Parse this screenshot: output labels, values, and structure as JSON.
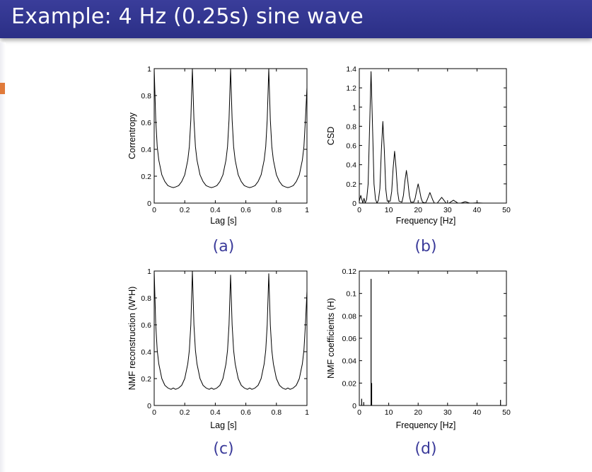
{
  "slide": {
    "title": "Example: 4 Hz (0.25s) sine wave"
  },
  "colors": {
    "title_bar": "#2e3188",
    "title_text": "#ffffff",
    "caption": "#3b3b9a",
    "marker": "#e07a3a",
    "plot_line": "#000000"
  },
  "chart_data": [
    {
      "id": "a",
      "caption": "(a)",
      "type": "line",
      "title": "",
      "xlabel": "Lag [s]",
      "ylabel": "Correntropy",
      "xlim": [
        0,
        1
      ],
      "ylim": [
        0,
        1
      ],
      "xticks": [
        0,
        0.2,
        0.4,
        0.6,
        0.8,
        1
      ],
      "xtick_labels": [
        "0",
        "0.2",
        "0.4",
        "0.6",
        "0.8",
        "1"
      ],
      "yticks": [
        0,
        0.2,
        0.4,
        0.6,
        0.8,
        1
      ],
      "ytick_labels": [
        "0",
        "0.2",
        "0.4",
        "0.6",
        "0.8",
        "1"
      ],
      "series": [
        {
          "x": [
            0,
            0.01,
            0.02,
            0.03,
            0.05,
            0.07,
            0.09,
            0.11,
            0.125,
            0.14,
            0.16,
            0.18,
            0.2,
            0.22,
            0.23,
            0.24,
            0.25,
            0.26,
            0.27,
            0.28,
            0.3,
            0.32,
            0.34,
            0.36,
            0.375,
            0.39,
            0.41,
            0.43,
            0.45,
            0.47,
            0.48,
            0.49,
            0.5,
            0.51,
            0.52,
            0.53,
            0.55,
            0.57,
            0.59,
            0.61,
            0.625,
            0.64,
            0.66,
            0.68,
            0.7,
            0.72,
            0.73,
            0.74,
            0.75,
            0.76,
            0.77,
            0.78,
            0.8,
            0.82,
            0.84,
            0.86,
            0.875,
            0.89,
            0.91,
            0.93,
            0.95,
            0.97,
            0.98,
            0.99,
            1.0
          ],
          "y": [
            1.0,
            0.62,
            0.42,
            0.32,
            0.21,
            0.16,
            0.13,
            0.12,
            0.115,
            0.12,
            0.13,
            0.16,
            0.21,
            0.32,
            0.42,
            0.62,
            1.0,
            0.62,
            0.42,
            0.32,
            0.21,
            0.16,
            0.13,
            0.12,
            0.115,
            0.12,
            0.13,
            0.16,
            0.21,
            0.32,
            0.42,
            0.62,
            1.0,
            0.62,
            0.42,
            0.32,
            0.21,
            0.16,
            0.13,
            0.12,
            0.115,
            0.12,
            0.13,
            0.16,
            0.21,
            0.32,
            0.42,
            0.62,
            1.0,
            0.62,
            0.42,
            0.32,
            0.21,
            0.16,
            0.13,
            0.12,
            0.115,
            0.12,
            0.13,
            0.16,
            0.21,
            0.32,
            0.42,
            0.62,
            0.86
          ]
        }
      ]
    },
    {
      "id": "b",
      "caption": "(b)",
      "type": "line",
      "title": "",
      "xlabel": "Frequency [Hz]",
      "ylabel": "CSD",
      "xlim": [
        0,
        50
      ],
      "ylim": [
        0,
        1.4
      ],
      "xticks": [
        0,
        10,
        20,
        30,
        40,
        50
      ],
      "xtick_labels": [
        "0",
        "10",
        "20",
        "30",
        "40",
        "50"
      ],
      "yticks": [
        0,
        0.2,
        0.4,
        0.6,
        0.8,
        1,
        1.2,
        1.4
      ],
      "ytick_labels": [
        "0",
        "0.2",
        "0.4",
        "0.6",
        "0.8",
        "1",
        "1.2",
        "1.4"
      ],
      "series": [
        {
          "x": [
            0,
            0.5,
            1.2,
            1.6,
            2.0,
            2.5,
            3.0,
            3.5,
            4.0,
            4.5,
            5.0,
            5.5,
            6.0,
            6.5,
            7.0,
            7.5,
            8.0,
            8.5,
            9.0,
            9.5,
            10.5,
            11.0,
            11.5,
            12.0,
            12.5,
            13.0,
            13.5,
            14.5,
            15.0,
            15.5,
            16.0,
            16.5,
            17.0,
            17.5,
            18.5,
            19.0,
            19.5,
            20.0,
            20.5,
            21.0,
            21.5,
            22.5,
            23.0,
            23.5,
            24.0,
            24.5,
            25.0,
            25.5,
            26.5,
            27.0,
            27.5,
            28.0,
            28.5,
            29.0,
            29.5,
            30.5,
            31.0,
            31.5,
            32.0,
            32.5,
            33.0,
            33.5,
            34.5,
            35.0,
            35.5,
            36.0,
            36.5,
            37.0,
            37.5,
            38.5,
            40.0,
            42.0,
            50.0
          ],
          "y": [
            0.02,
            0.08,
            0.0,
            0.05,
            0.0,
            0.04,
            0.2,
            0.8,
            1.37,
            0.8,
            0.2,
            0.04,
            0.0,
            0.03,
            0.15,
            0.55,
            0.85,
            0.55,
            0.15,
            0.02,
            0.02,
            0.12,
            0.36,
            0.54,
            0.36,
            0.12,
            0.02,
            0.01,
            0.08,
            0.23,
            0.34,
            0.23,
            0.08,
            0.01,
            0.01,
            0.05,
            0.13,
            0.2,
            0.13,
            0.05,
            0.01,
            0.0,
            0.03,
            0.07,
            0.11,
            0.07,
            0.03,
            0.0,
            0.0,
            0.02,
            0.04,
            0.06,
            0.04,
            0.02,
            0.0,
            0.0,
            0.01,
            0.02,
            0.03,
            0.02,
            0.01,
            0.0,
            0.0,
            0.005,
            0.01,
            0.015,
            0.01,
            0.005,
            0.0,
            0.0,
            0.003,
            0.0,
            0.0
          ]
        }
      ]
    },
    {
      "id": "c",
      "caption": "(c)",
      "type": "line",
      "title": "",
      "xlabel": "Lag [s]",
      "ylabel": "NMF reconstruction (W*H)",
      "xlim": [
        0,
        1
      ],
      "ylim": [
        0,
        1
      ],
      "xticks": [
        0,
        0.2,
        0.4,
        0.6,
        0.8,
        1
      ],
      "xtick_labels": [
        "0",
        "0.2",
        "0.4",
        "0.6",
        "0.8",
        "1"
      ],
      "yticks": [
        0,
        0.2,
        0.4,
        0.6,
        0.8,
        1
      ],
      "ytick_labels": [
        "0",
        "0.2",
        "0.4",
        "0.6",
        "0.8",
        "1"
      ],
      "series": [
        {
          "x": [
            0,
            0.01,
            0.02,
            0.03,
            0.05,
            0.07,
            0.09,
            0.11,
            0.125,
            0.14,
            0.16,
            0.18,
            0.2,
            0.22,
            0.23,
            0.24,
            0.25,
            0.26,
            0.27,
            0.28,
            0.3,
            0.32,
            0.34,
            0.36,
            0.375,
            0.39,
            0.41,
            0.43,
            0.45,
            0.47,
            0.48,
            0.49,
            0.5,
            0.51,
            0.52,
            0.53,
            0.55,
            0.57,
            0.59,
            0.61,
            0.625,
            0.64,
            0.66,
            0.68,
            0.7,
            0.72,
            0.73,
            0.74,
            0.75,
            0.76,
            0.77,
            0.78,
            0.8,
            0.82,
            0.84,
            0.86,
            0.875,
            0.89,
            0.91,
            0.93,
            0.95,
            0.97,
            0.98,
            0.99,
            1.0
          ],
          "y": [
            1.0,
            0.6,
            0.41,
            0.31,
            0.2,
            0.15,
            0.13,
            0.12,
            0.13,
            0.12,
            0.13,
            0.15,
            0.2,
            0.31,
            0.41,
            0.6,
            1.0,
            0.6,
            0.41,
            0.31,
            0.2,
            0.15,
            0.13,
            0.12,
            0.13,
            0.12,
            0.13,
            0.15,
            0.2,
            0.31,
            0.41,
            0.6,
            0.97,
            0.6,
            0.41,
            0.31,
            0.2,
            0.15,
            0.13,
            0.12,
            0.13,
            0.12,
            0.13,
            0.15,
            0.2,
            0.31,
            0.41,
            0.6,
            0.98,
            0.6,
            0.41,
            0.31,
            0.2,
            0.15,
            0.13,
            0.12,
            0.13,
            0.12,
            0.13,
            0.15,
            0.2,
            0.31,
            0.41,
            0.6,
            0.85
          ]
        }
      ]
    },
    {
      "id": "d",
      "caption": "(d)",
      "type": "bar",
      "title": "",
      "xlabel": "Frequency [Hz]",
      "ylabel": "NMF coefficients (H)",
      "xlim": [
        0,
        50
      ],
      "ylim": [
        0,
        0.12
      ],
      "xticks": [
        0,
        10,
        20,
        30,
        40,
        50
      ],
      "xtick_labels": [
        "0",
        "10",
        "20",
        "30",
        "40",
        "50"
      ],
      "yticks": [
        0,
        0.02,
        0.04,
        0.06,
        0.08,
        0.1,
        0.12
      ],
      "ytick_labels": [
        "0",
        "0.02",
        "0.04",
        "0.06",
        "0.08",
        "0.1",
        "0.12"
      ],
      "series": [
        {
          "x": [
            0.8,
            1.5,
            4.0,
            4.2,
            48.0
          ],
          "y": [
            0.006,
            0.003,
            0.113,
            0.02,
            0.005
          ]
        }
      ]
    }
  ]
}
